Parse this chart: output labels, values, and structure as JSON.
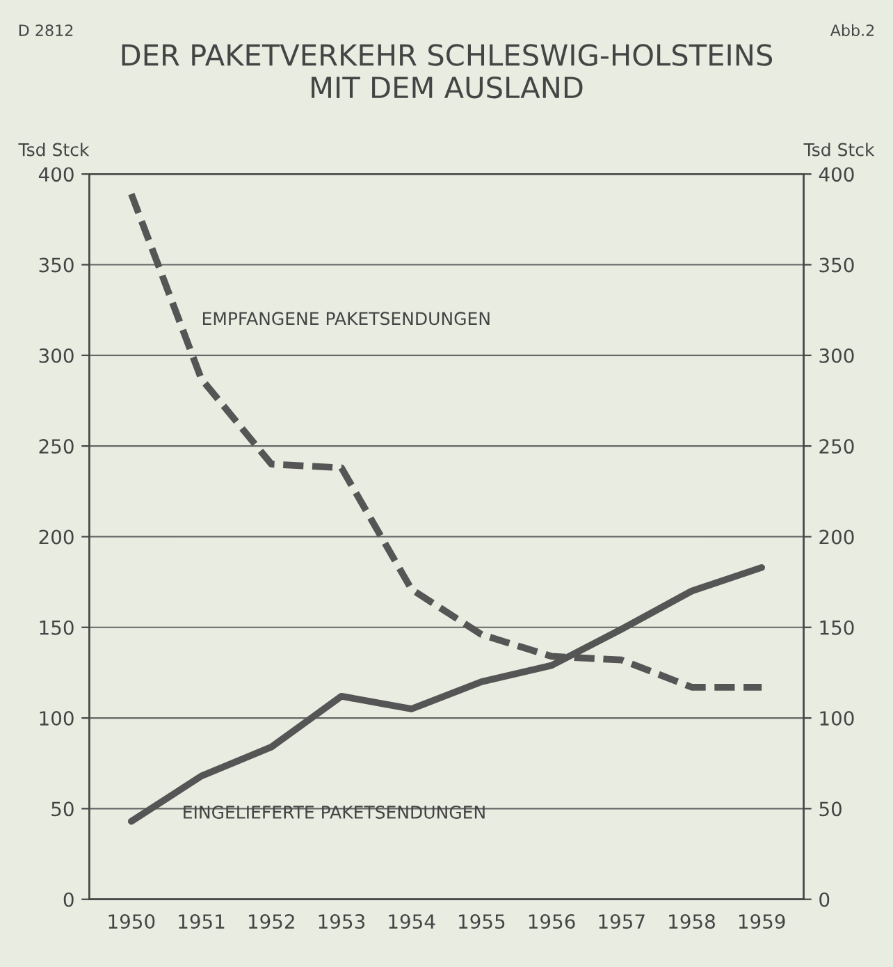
{
  "chart_data": {
    "type": "line",
    "title": "DER PAKETVERKEHR SCHLESWIG-HOLSTEINS\nMIT DEM AUSLAND",
    "categories": [
      "1950",
      "1951",
      "1952",
      "1953",
      "1954",
      "1955",
      "1956",
      "1957",
      "1958",
      "1959"
    ],
    "series": [
      {
        "name": "EMPFANGENE PAKETSENDUNGEN",
        "color": "#555555",
        "line_style": "dashed",
        "values": [
          389,
          287,
          240,
          238,
          171,
          146,
          134,
          132,
          117,
          117
        ]
      },
      {
        "name": "EINGELIEFERTE PAKETSENDUNGEN",
        "color": "#555555",
        "line_style": "solid",
        "values": [
          43,
          68,
          84,
          112,
          105,
          120,
          129,
          149,
          170,
          183
        ]
      }
    ],
    "ylabel": "Tsd Stck",
    "y2label": "Tsd Stck",
    "ylim": [
      0,
      400
    ],
    "yticks": [
      0,
      50,
      100,
      150,
      200,
      250,
      300,
      350,
      400
    ],
    "y2lim": [
      0,
      400
    ],
    "y2ticks": [
      0,
      50,
      100,
      150,
      200,
      250,
      300,
      350,
      400
    ],
    "grid": "y",
    "legend": false,
    "annotations": [
      "D 2812",
      "Abb.2"
    ]
  }
}
